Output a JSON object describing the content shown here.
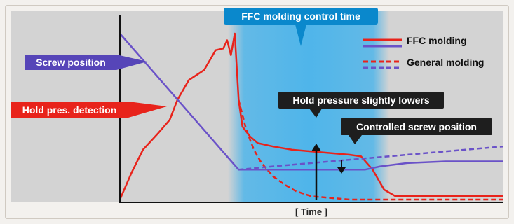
{
  "chart_data": {
    "type": "line",
    "title": "",
    "xlabel": "[ Time ]",
    "ylabel": "",
    "grid": false,
    "legend_position": "top-right",
    "x_range": [
      0,
      100
    ],
    "y_range": [
      0,
      100
    ],
    "legend": [
      {
        "label": "FFC molding",
        "style": "solid"
      },
      {
        "label": "General molding",
        "style": "dashed"
      }
    ],
    "band": {
      "label": "FFC molding control time",
      "from": 31,
      "to": 63
    },
    "series": [
      {
        "key": "pressure_ffc",
        "color": "#e8231b",
        "dash": false,
        "x": [
          0,
          3,
          6,
          10,
          13,
          15,
          16,
          18,
          22,
          25,
          27,
          28,
          29,
          30,
          31,
          32,
          34,
          36,
          40,
          45,
          50,
          55,
          60,
          63,
          66,
          69,
          72,
          78,
          85,
          92,
          100
        ],
        "y": [
          0,
          16,
          30,
          40,
          48,
          60,
          64,
          72,
          78,
          90,
          91,
          96,
          87,
          100,
          60,
          44,
          38,
          34,
          32,
          30,
          29,
          28,
          27,
          26,
          18,
          6,
          2,
          2,
          2,
          2,
          2
        ]
      },
      {
        "key": "pressure_general",
        "color": "#e8231b",
        "dash": true,
        "x": [
          31,
          33,
          35,
          37,
          40,
          43,
          46,
          50,
          60,
          70,
          80,
          90,
          100
        ],
        "y": [
          60,
          42,
          30,
          22,
          14,
          9,
          5,
          2,
          0,
          0,
          0,
          0,
          0
        ]
      },
      {
        "key": "screw_ffc",
        "color": "#6a52c8",
        "dash": false,
        "x": [
          0,
          31,
          38,
          45,
          55,
          64,
          68,
          75,
          85,
          100
        ],
        "y": [
          100,
          18,
          18,
          18,
          18,
          18,
          20,
          22,
          23,
          23
        ]
      },
      {
        "key": "screw_general",
        "color": "#6a52c8",
        "dash": true,
        "x": [
          31,
          40,
          50,
          60,
          70,
          80,
          90,
          100
        ],
        "y": [
          18,
          20,
          22,
          24,
          26,
          28,
          30,
          32
        ]
      }
    ],
    "annotations": [
      {
        "key": "screw_position",
        "label": "Screw position"
      },
      {
        "key": "hold_detect",
        "label": "Hold pres. detection"
      },
      {
        "key": "hold_lowers",
        "label": "Hold pressure slightly lowers"
      },
      {
        "key": "controlled_screw",
        "label": "Controlled screw position"
      }
    ]
  },
  "colors": {
    "panel": "#d3d3d3",
    "band": "#4fb5ea",
    "callout_dark": "#1e1e1e",
    "callout_blue": "#0a88cc",
    "screw_tag": "#5645b8",
    "hold_tag": "#e8231b",
    "pressure": "#e8231b",
    "screw": "#6a52c8"
  }
}
